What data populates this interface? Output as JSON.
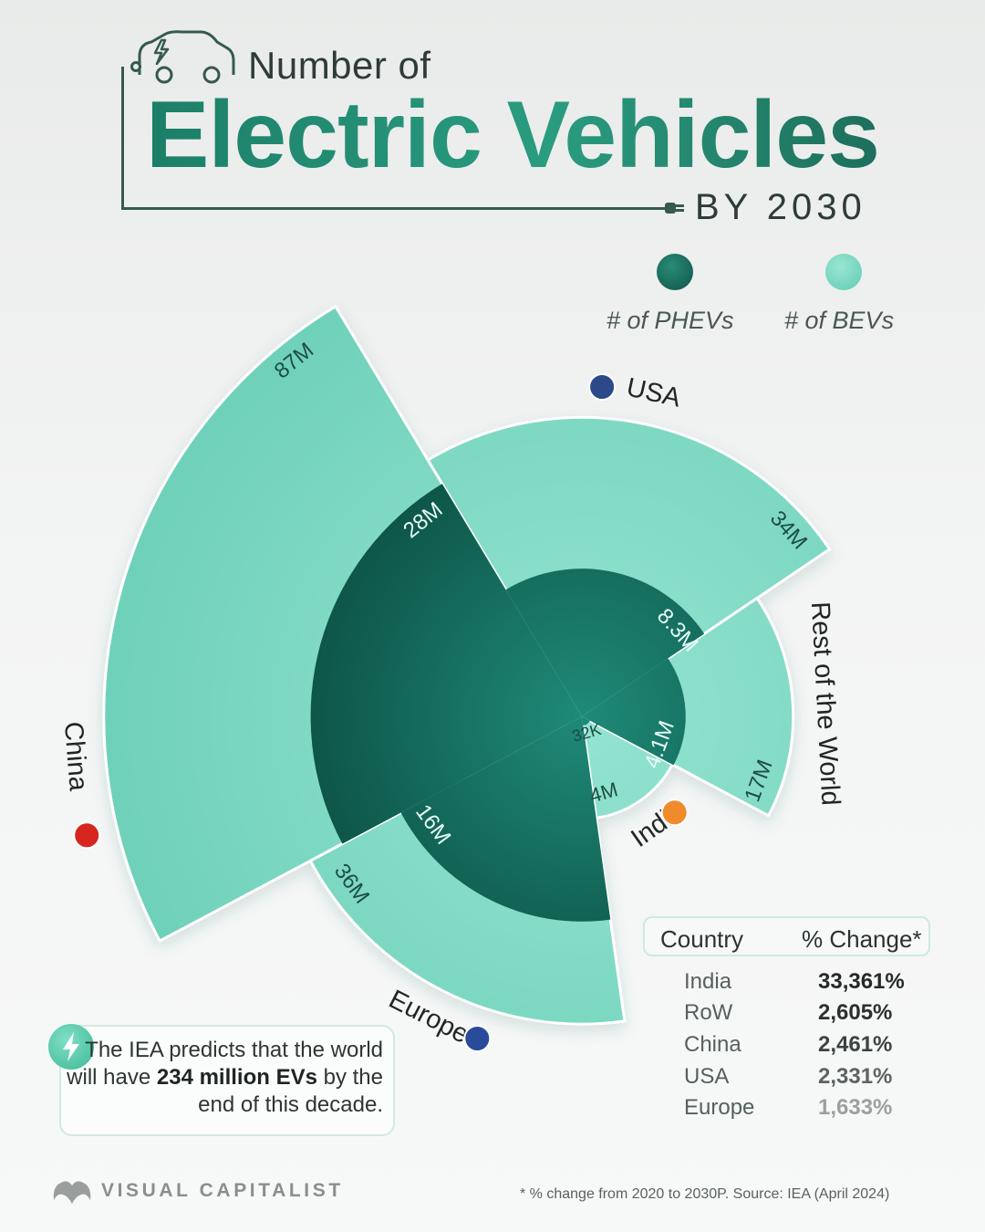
{
  "title": {
    "line1": "Number of",
    "line2": "Electric Vehicles",
    "line3": "BY 2030"
  },
  "legend": {
    "phev": "# of PHEVs",
    "bev": "# of BEVs"
  },
  "colors": {
    "phev": "#137062",
    "bev": "#74d9c1",
    "accent": "#1f8069"
  },
  "icons": {
    "title": "electric-car-icon",
    "plug": "plug-icon",
    "callout": "lightning-bolt-icon"
  },
  "chart_data": {
    "type": "polar-area",
    "unit": "vehicles",
    "categories": [
      "China",
      "USA",
      "Rest of the World",
      "India",
      "Europe"
    ],
    "series": [
      {
        "name": "# of PHEVs",
        "labels": [
          "28M",
          "8.3M",
          "4.1M",
          "32K",
          "16M"
        ],
        "values": [
          28000000,
          8300000,
          4100000,
          32000,
          16000000
        ]
      },
      {
        "name": "# of BEVs",
        "labels": [
          "87M",
          "34M",
          "17M",
          "4M",
          "36M"
        ],
        "values": [
          87000000,
          34000000,
          17000000,
          4000000,
          36000000
        ]
      }
    ]
  },
  "table": {
    "headers": [
      "Country",
      "% Change*"
    ],
    "rows": [
      {
        "country": "India",
        "change": "33,361%"
      },
      {
        "country": "RoW",
        "change": "2,605%"
      },
      {
        "country": "China",
        "change": "2,461%"
      },
      {
        "country": "USA",
        "change": "2,331%"
      },
      {
        "country": "Europe",
        "change": "1,633%"
      }
    ]
  },
  "callout": {
    "pre": "The IEA predicts that the world will have ",
    "bold": "234 million EVs",
    "post": " by the end of this decade."
  },
  "brand": "VISUAL CAPITALIST",
  "source": "* % change from 2020 to 2030P. Source: IEA (April 2024)"
}
